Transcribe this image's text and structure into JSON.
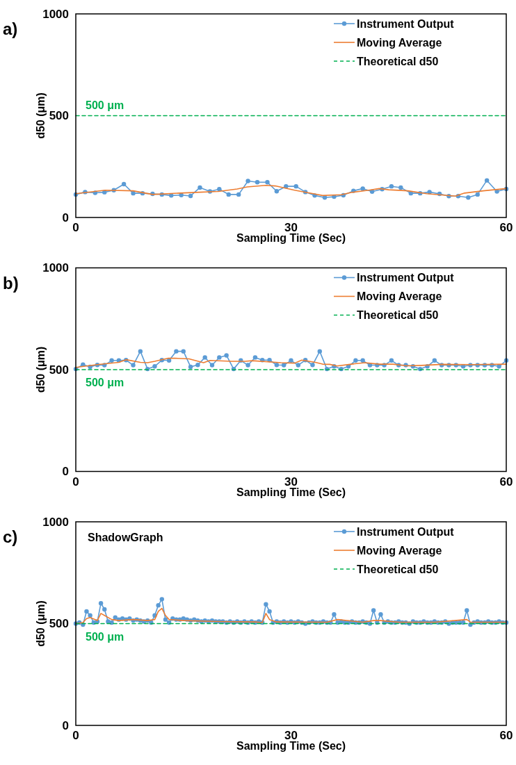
{
  "chart_data": [
    {
      "type": "line",
      "annotations": [
        "a)",
        {
          "text": "500 μm",
          "y": 500
        }
      ],
      "xlabel": "Sampling Time (Sec)",
      "ylabel": "d50 (μm)",
      "xlim": [
        0,
        60
      ],
      "xticks": [
        0,
        30,
        60
      ],
      "ylim": [
        0,
        1000
      ],
      "yticks": [
        0,
        500,
        1000
      ],
      "grid": false,
      "legend": "top right",
      "series": [
        {
          "name": "Instrument Output",
          "color": "#5b9bd5",
          "marker": "circle",
          "x": [
            0,
            1.3,
            2.7,
            4,
            5.3,
            6.7,
            8,
            9.3,
            10.7,
            12,
            13.3,
            14.7,
            16,
            17.3,
            18.7,
            20,
            21.3,
            22.7,
            24,
            25.3,
            26.7,
            28,
            29.3,
            30.7,
            32,
            33.3,
            34.7,
            36,
            37.3,
            38.7,
            40,
            41.3,
            42.7,
            44,
            45.3,
            46.7,
            48,
            49.3,
            50.7,
            52,
            53.3,
            54.7,
            56,
            57.3,
            58.7,
            60
          ],
          "values": [
            113,
            125,
            121,
            124,
            134,
            164,
            119,
            119,
            116,
            113,
            108,
            110,
            106,
            147,
            128,
            139,
            113,
            113,
            179,
            173,
            173,
            129,
            153,
            153,
            125,
            108,
            98,
            102,
            109,
            131,
            142,
            127,
            139,
            153,
            147,
            119,
            119,
            125,
            116,
            105,
            105,
            98,
            113,
            182,
            128,
            140
          ]
        },
        {
          "name": "Moving Average",
          "color": "#ed7d31",
          "marker": "none",
          "x": [
            0,
            4.1,
            8,
            10.7,
            14.6,
            17.3,
            19.9,
            22.5,
            23.9,
            26.5,
            27.8,
            30.5,
            33.1,
            34.4,
            37,
            38.4,
            41,
            42.3,
            43.6,
            46.3,
            48.9,
            51.5,
            52.9,
            54.2,
            56.8,
            60
          ],
          "values": [
            117,
            134,
            131,
            113,
            120,
            124,
            128,
            140,
            150,
            158,
            155,
            134,
            117,
            108,
            112,
            123,
            135,
            142,
            136,
            131,
            117,
            109,
            105,
            120,
            131,
            142
          ]
        },
        {
          "name": "Theoretical d50",
          "color": "#00b050",
          "marker": "none",
          "line_style": "dashed",
          "x": [
            0,
            60
          ],
          "values": [
            500,
            500
          ]
        }
      ]
    },
    {
      "type": "line",
      "annotations": [
        "b)",
        {
          "text": "500 μm",
          "y": 500
        }
      ],
      "xlabel": "Sampling Time (Sec)",
      "ylabel": "d50 (μm)",
      "xlim": [
        0,
        60
      ],
      "xticks": [
        0,
        30,
        60
      ],
      "ylim": [
        0,
        1000
      ],
      "yticks": [
        0,
        500,
        1000
      ],
      "grid": false,
      "legend": "top right",
      "series": [
        {
          "name": "Instrument Output",
          "color": "#5b9bd5",
          "marker": "circle",
          "x": [
            0,
            1,
            2,
            3,
            4,
            5,
            6,
            7,
            8,
            9,
            10,
            11,
            12,
            13,
            14,
            15,
            16,
            17,
            18,
            19,
            20,
            21,
            22,
            23,
            24,
            25,
            26,
            27,
            28,
            29,
            30,
            31,
            32,
            33,
            34,
            35,
            36,
            37,
            38,
            39,
            40,
            41,
            42,
            43,
            44,
            45,
            46,
            47,
            48,
            49,
            50,
            51,
            52,
            53,
            54,
            55,
            56,
            57,
            58,
            59,
            60
          ],
          "values": [
            503,
            525,
            514,
            523,
            522,
            545,
            545,
            547,
            522,
            590,
            503,
            516,
            547,
            545,
            590,
            590,
            514,
            523,
            560,
            522,
            560,
            570,
            503,
            545,
            522,
            560,
            547,
            547,
            523,
            522,
            545,
            522,
            547,
            523,
            590,
            503,
            516,
            503,
            516,
            545,
            545,
            522,
            522,
            522,
            545,
            522,
            522,
            516,
            503,
            516,
            545,
            522,
            522,
            522,
            516,
            522,
            522,
            522,
            522,
            516,
            545
          ]
        },
        {
          "name": "Moving Average",
          "color": "#ed7d31",
          "marker": "none",
          "x": [
            0,
            3,
            6,
            7,
            9,
            10,
            11,
            12.9,
            13.8,
            15.8,
            17.8,
            18.7,
            21.7,
            23.6,
            24.6,
            28.6,
            30.5,
            31.5,
            33.4,
            34.4,
            35.4,
            36.4,
            38.4,
            40.3,
            42.3,
            44.2,
            46.2,
            48.2,
            51.1,
            55,
            60
          ],
          "values": [
            511,
            525,
            536,
            549,
            536,
            534,
            541,
            556,
            556,
            553,
            534,
            545,
            541,
            541,
            544,
            534,
            532,
            547,
            536,
            527,
            526,
            518,
            527,
            534,
            527,
            527,
            519,
            521,
            526,
            525,
            527
          ]
        },
        {
          "name": "Theoretical d50",
          "color": "#00b050",
          "marker": "none",
          "line_style": "dashed",
          "x": [
            0,
            60
          ],
          "values": [
            500,
            500
          ]
        }
      ]
    },
    {
      "type": "line",
      "title": "ShadowGraph",
      "annotations": [
        "c)",
        {
          "text": "500 μm",
          "y": 500
        }
      ],
      "xlabel": "Sampling Time (Sec)",
      "ylabel": "d50 (μm)",
      "xlim": [
        0,
        60
      ],
      "xticks": [
        0,
        30,
        60
      ],
      "ylim": [
        0,
        1000
      ],
      "yticks": [
        0,
        500,
        1000
      ],
      "grid": false,
      "legend": "top right",
      "series": [
        {
          "name": "Instrument Output",
          "color": "#5b9bd5",
          "marker": "circle",
          "x": [
            0,
            0.5,
            1,
            1.5,
            2,
            2.5,
            3,
            3.5,
            4,
            4.5,
            5,
            5.5,
            6,
            6.5,
            7,
            7.5,
            8,
            8.5,
            9,
            9.5,
            10,
            10.5,
            11,
            11.5,
            12,
            12.5,
            13,
            13.5,
            14,
            14.5,
            15,
            15.5,
            16,
            16.5,
            17,
            17.5,
            18,
            18.5,
            19,
            19.5,
            20,
            20.5,
            21,
            21.5,
            22,
            22.5,
            23,
            23.5,
            24,
            24.5,
            25,
            25.5,
            26,
            26.5,
            27,
            27.5,
            28,
            28.5,
            29,
            29.5,
            30,
            30.5,
            31,
            31.5,
            32,
            32.5,
            33,
            33.5,
            34,
            34.5,
            35,
            35.5,
            36,
            36.5,
            37,
            37.5,
            38,
            38.5,
            39,
            39.5,
            40,
            40.5,
            41,
            41.5,
            42,
            42.5,
            43,
            43.5,
            44,
            44.5,
            45,
            45.5,
            46,
            46.5,
            47,
            47.5,
            48,
            48.5,
            49,
            49.5,
            50,
            50.5,
            51,
            51.5,
            52,
            52.5,
            53,
            53.5,
            54,
            54.5,
            55,
            55.5,
            56,
            56.5,
            57,
            57.5,
            58,
            58.5,
            59,
            59.5,
            60
          ],
          "values": [
            500,
            505,
            495,
            560,
            540,
            505,
            510,
            600,
            570,
            510,
            505,
            530,
            520,
            525,
            520,
            525,
            515,
            520,
            515,
            510,
            515,
            505,
            540,
            590,
            620,
            520,
            505,
            525,
            520,
            520,
            525,
            520,
            515,
            520,
            515,
            510,
            515,
            510,
            515,
            510,
            510,
            510,
            505,
            510,
            505,
            510,
            505,
            510,
            505,
            510,
            505,
            510,
            505,
            595,
            560,
            505,
            510,
            505,
            510,
            505,
            510,
            505,
            510,
            505,
            500,
            505,
            510,
            505,
            505,
            510,
            505,
            505,
            545,
            505,
            510,
            505,
            505,
            510,
            505,
            505,
            510,
            505,
            500,
            565,
            505,
            545,
            505,
            510,
            505,
            505,
            510,
            505,
            505,
            500,
            510,
            505,
            505,
            510,
            505,
            505,
            510,
            505,
            505,
            510,
            500,
            505,
            505,
            505,
            505,
            565,
            495,
            505,
            510,
            505,
            505,
            510,
            505,
            505,
            510,
            505,
            505
          ]
        },
        {
          "name": "Moving Average",
          "color": "#ed7d31",
          "marker": "none",
          "x": [
            0,
            1,
            1.5,
            2,
            3,
            3.5,
            4,
            5,
            6,
            8,
            10,
            11,
            11.5,
            12,
            12.5,
            13,
            15,
            20,
            25,
            26,
            26.5,
            27,
            28,
            35,
            36.5,
            40,
            41.5,
            42.5,
            45,
            50,
            54.5,
            55,
            60
          ],
          "values": [
            500,
            505,
            525,
            530,
            515,
            550,
            540,
            520,
            515,
            520,
            515,
            520,
            560,
            575,
            540,
            520,
            515,
            510,
            508,
            505,
            550,
            520,
            508,
            507,
            520,
            507,
            515,
            515,
            507,
            507,
            520,
            507,
            507
          ]
        },
        {
          "name": "Theoretical d50",
          "color": "#00b050",
          "marker": "none",
          "line_style": "dashed",
          "x": [
            0,
            60
          ],
          "values": [
            500,
            500
          ]
        }
      ]
    }
  ]
}
